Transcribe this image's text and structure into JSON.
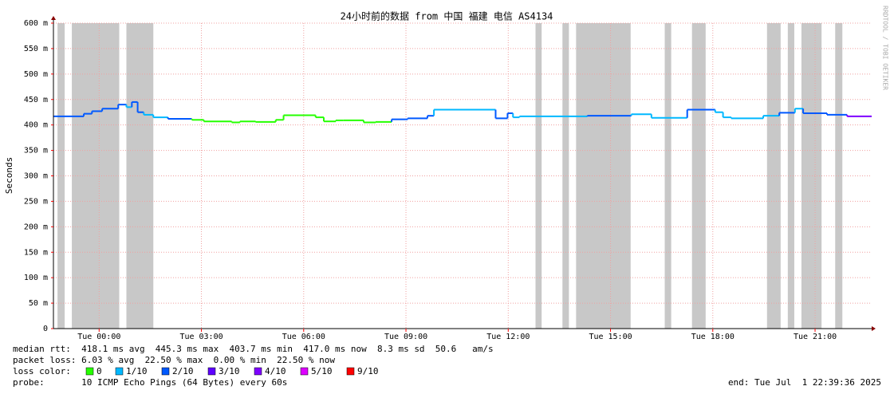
{
  "chart_data": {
    "type": "smokeping",
    "title": "24小时前的数据 from 中国 福建 电信 AS4134",
    "y_label": "Seconds",
    "side_text": "RRDTOOL / TOBI OETIKER",
    "xlim": [
      -1.34,
      22.66
    ],
    "xticks": [
      {
        "value": 0,
        "label": "Tue 00:00"
      },
      {
        "value": 3,
        "label": "Tue 03:00"
      },
      {
        "value": 6,
        "label": "Tue 06:00"
      },
      {
        "value": 9,
        "label": "Tue 09:00"
      },
      {
        "value": 12,
        "label": "Tue 12:00"
      },
      {
        "value": 15,
        "label": "Tue 15:00"
      },
      {
        "value": 18,
        "label": "Tue 18:00"
      },
      {
        "value": 21,
        "label": "Tue 21:00"
      }
    ],
    "ylim": [
      0,
      600
    ],
    "yticks": [
      0,
      {
        "value": 50,
        "label": "50 m"
      },
      {
        "value": 100,
        "label": "100 m"
      },
      {
        "value": 150,
        "label": "150 m"
      },
      {
        "value": 200,
        "label": "200 m"
      },
      {
        "value": 250,
        "label": "250 m"
      },
      {
        "value": 300,
        "label": "300 m"
      },
      {
        "value": 350,
        "label": "350 m"
      },
      {
        "value": 400,
        "label": "400 m"
      },
      {
        "value": 450,
        "label": "450 m"
      },
      {
        "value": 500,
        "label": "500 m"
      },
      {
        "value": 550,
        "label": "550 m"
      },
      {
        "value": 600,
        "label": "600 m"
      }
    ],
    "grid": true,
    "loss_bands": [
      [
        -1.22,
        -1.01
      ],
      [
        -0.8,
        0.59
      ],
      [
        0.8,
        1.59
      ],
      [
        12.8,
        12.98
      ],
      [
        13.59,
        13.78
      ],
      [
        13.99,
        15.59
      ],
      [
        16.59,
        16.78
      ],
      [
        17.39,
        17.79
      ],
      [
        19.59,
        19.99
      ],
      [
        20.2,
        20.39
      ],
      [
        20.6,
        21.19
      ],
      [
        21.59,
        21.8
      ]
    ],
    "band_color": "#c8c8c8",
    "series": [
      {
        "name": "median rtt",
        "x": [
          -1.34,
          -0.45,
          -0.21,
          0.09,
          0.56,
          0.8,
          0.96,
          1.13,
          1.31,
          1.59,
          2.02,
          2.72,
          3.07,
          3.89,
          4.13,
          4.59,
          5.18,
          5.41,
          6.35,
          6.59,
          6.94,
          7.17,
          7.76,
          8.11,
          8.58,
          9.05,
          9.63,
          9.82,
          11.63,
          11.98,
          12.14,
          12.33,
          14.32,
          15.61,
          16.2,
          17.25,
          18.07,
          18.3,
          18.54,
          19.48,
          19.95,
          20.41,
          20.65,
          21.35,
          21.94
        ],
        "values": [
          417,
          422,
          427,
          432,
          440,
          435,
          445,
          425,
          420,
          415,
          412,
          410,
          407,
          405,
          407,
          406,
          410,
          419,
          415,
          407,
          409,
          409,
          405,
          406,
          411,
          413,
          418,
          430,
          413,
          423,
          415,
          417,
          418,
          421,
          414,
          430,
          425,
          415,
          413,
          418,
          424,
          432,
          423,
          420,
          417
        ],
        "colors": [
          "#0059ff",
          "#0059ff",
          "#0059ff",
          "#0059ff",
          "#0059ff",
          "#00b8ff",
          "#0059ff",
          "#0059ff",
          "#00b8ff",
          "#00b8ff",
          "#0059ff",
          "#26ff00",
          "#26ff00",
          "#26ff00",
          "#26ff00",
          "#26ff00",
          "#26ff00",
          "#26ff00",
          "#26ff00",
          "#26ff00",
          "#26ff00",
          "#26ff00",
          "#26ff00",
          "#26ff00",
          "#0059ff",
          "#0059ff",
          "#0059ff",
          "#00b8ff",
          "#0059ff",
          "#0059ff",
          "#00b8ff",
          "#00b8ff",
          "#0059ff",
          "#00b8ff",
          "#00b8ff",
          "#0059ff",
          "#00b8ff",
          "#00b8ff",
          "#00b8ff",
          "#00b8ff",
          "#0059ff",
          "#00b8ff",
          "#0059ff",
          "#0059ff",
          "#7e00ff"
        ]
      }
    ],
    "stats": {
      "rtt": "median rtt:  418.1 ms avg  445.3 ms max  403.7 ms min  417.0 ms now  8.3 ms sd  50.6   am/s",
      "loss": "packet loss: 6.03 % avg  22.50 % max  0.00 % min  22.50 % now",
      "legend_label": "loss color:",
      "probe": "probe:       10 ICMP Echo Pings (64 Bytes) every 60s",
      "end": "end: Tue Jul  1 22:39:36 2025"
    },
    "loss_legend": [
      {
        "name": "0",
        "color": "#26ff00"
      },
      {
        "name": "1/10",
        "color": "#00b8ff"
      },
      {
        "name": "2/10",
        "color": "#0059ff"
      },
      {
        "name": "3/10",
        "color": "#5e00ff"
      },
      {
        "name": "4/10",
        "color": "#7e00ff"
      },
      {
        "name": "5/10",
        "color": "#dd00ff"
      },
      {
        "name": "9/10",
        "color": "#ff0000"
      }
    ]
  }
}
